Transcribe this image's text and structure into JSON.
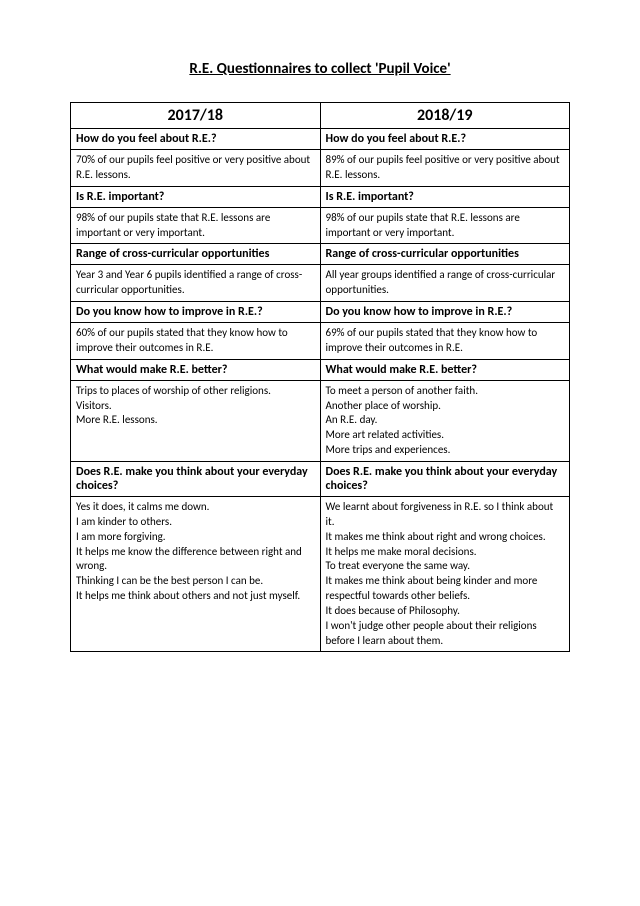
{
  "title": "R.E. Questionnaires to collect 'Pupil Voice'",
  "columns": {
    "left": "2017/18",
    "right": "2018/19"
  },
  "rows": [
    {
      "type": "question",
      "left": "How do you feel about R.E.?",
      "right": "How do you feel about R.E.?"
    },
    {
      "type": "answer",
      "left": "70% of our pupils feel positive or very positive about R.E. lessons.",
      "right": "89% of our pupils feel positive or very positive about R.E. lessons."
    },
    {
      "type": "question",
      "left": "Is R.E. important?",
      "right": "Is R.E. important?"
    },
    {
      "type": "answer",
      "left": "98% of our pupils state that R.E. lessons are important or very important.",
      "right": "98% of our pupils state that R.E. lessons are important or very important."
    },
    {
      "type": "question",
      "left": "Range of cross-curricular opportunities",
      "right": "Range of cross-curricular opportunities"
    },
    {
      "type": "answer",
      "left": "Year 3 and Year 6 pupils identified a range of cross-curricular opportunities.",
      "right": "All year groups identified a range of cross-curricular opportunities."
    },
    {
      "type": "question",
      "left": "Do you know how to improve in R.E.?",
      "right": "Do you know how to improve in R.E.?"
    },
    {
      "type": "answer",
      "left": "60% of our pupils stated that they know how to improve their outcomes in R.E.",
      "right": "69% of our pupils stated that they know how to improve their outcomes in R.E."
    },
    {
      "type": "question",
      "left": "What would make R.E. better?",
      "right": "What would make R.E. better?"
    },
    {
      "type": "answer",
      "left": "Trips to places of worship of other religions.\nVisitors.\nMore R.E. lessons.",
      "right": "To meet a person of another faith.\nAnother place of worship.\nAn R.E. day.\nMore art related activities.\nMore trips and experiences."
    },
    {
      "type": "question",
      "left": "Does R.E. make you think about your everyday choices?",
      "right": "Does R.E. make you think about your everyday choices?"
    },
    {
      "type": "answer",
      "left": "Yes it does, it calms me down.\nI am kinder to others.\nI am more forgiving.\nIt helps me know the difference between right and wrong.\nThinking I can be the best person I can be.\nIt helps me think about others and not just myself.",
      "right": "We learnt about forgiveness in R.E. so I think about it.\nIt makes me think about right and wrong choices.\nIt helps me make moral decisions.\nTo treat everyone the same way.\nIt makes me think about being kinder and more respectful towards other beliefs.\nIt does because of Philosophy.\nI won't judge other people about their religions before I learn about them."
    }
  ],
  "style": {
    "page_bg": "#ffffff",
    "text_color": "#000000",
    "border_color": "#000000",
    "title_fontsize": 15,
    "year_fontsize": 16,
    "question_fontsize": 12,
    "answer_fontsize": 11
  }
}
